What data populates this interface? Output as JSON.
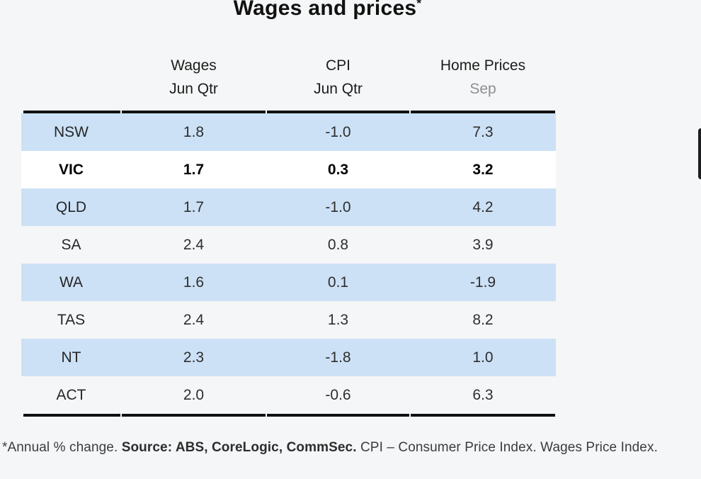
{
  "title": {
    "text": "Wages and prices",
    "superscript": "*"
  },
  "table": {
    "columns": [
      {
        "line1": "",
        "line2": ""
      },
      {
        "line1": "Wages",
        "line2": "Jun Qtr"
      },
      {
        "line1": "CPI",
        "line2": "Jun Qtr"
      },
      {
        "line1": "Home Prices",
        "line2": "Sep"
      }
    ],
    "rows": [
      {
        "label": "NSW",
        "wages": "1.8",
        "cpi": "-1.0",
        "home": "7.3",
        "shaded": true,
        "highlight": false
      },
      {
        "label": "VIC",
        "wages": "1.7",
        "cpi": "0.3",
        "home": "3.2",
        "shaded": false,
        "highlight": true
      },
      {
        "label": "QLD",
        "wages": "1.7",
        "cpi": "-1.0",
        "home": "4.2",
        "shaded": true,
        "highlight": false
      },
      {
        "label": "SA",
        "wages": "2.4",
        "cpi": "0.8",
        "home": "3.9",
        "shaded": false,
        "highlight": false
      },
      {
        "label": "WA",
        "wages": "1.6",
        "cpi": "0.1",
        "home": "-1.9",
        "shaded": true,
        "highlight": false
      },
      {
        "label": "TAS",
        "wages": "2.4",
        "cpi": "1.3",
        "home": "8.2",
        "shaded": false,
        "highlight": false
      },
      {
        "label": "NT",
        "wages": "2.3",
        "cpi": "-1.8",
        "home": "1.0",
        "shaded": true,
        "highlight": false
      },
      {
        "label": "ACT",
        "wages": "2.0",
        "cpi": "-0.6",
        "home": "6.3",
        "shaded": false,
        "highlight": false
      }
    ]
  },
  "footnote": {
    "part1": "*Annual % change. ",
    "part2": "Source: ABS, CoreLogic, CommSec.",
    "part3": " CPI – Consumer Price Index. Wages Price Index."
  },
  "colors": {
    "background": "#f5f6f7",
    "shaded_row": "#cce1f6",
    "highlight_row": "#ffffff",
    "rule": "#101010",
    "muted_header": "#8f8f8f"
  },
  "chart_data": {
    "type": "table",
    "title": "Wages and prices*",
    "columns": [
      "",
      "Wages Jun Qtr",
      "CPI Jun Qtr",
      "Home Prices Sep"
    ],
    "rows": [
      {
        "region": "NSW",
        "wages_jun_qtr": 1.8,
        "cpi_jun_qtr": -1.0,
        "home_prices_sep": 7.3
      },
      {
        "region": "VIC",
        "wages_jun_qtr": 1.7,
        "cpi_jun_qtr": 0.3,
        "home_prices_sep": 3.2
      },
      {
        "region": "QLD",
        "wages_jun_qtr": 1.7,
        "cpi_jun_qtr": -1.0,
        "home_prices_sep": 4.2
      },
      {
        "region": "SA",
        "wages_jun_qtr": 2.4,
        "cpi_jun_qtr": 0.8,
        "home_prices_sep": 3.9
      },
      {
        "region": "WA",
        "wages_jun_qtr": 1.6,
        "cpi_jun_qtr": 0.1,
        "home_prices_sep": -1.9
      },
      {
        "region": "TAS",
        "wages_jun_qtr": 2.4,
        "cpi_jun_qtr": 1.3,
        "home_prices_sep": 8.2
      },
      {
        "region": "NT",
        "wages_jun_qtr": 2.3,
        "cpi_jun_qtr": -1.8,
        "home_prices_sep": 1.0
      },
      {
        "region": "ACT",
        "wages_jun_qtr": 2.0,
        "cpi_jun_qtr": -0.6,
        "home_prices_sep": 6.3
      }
    ],
    "notes": "*Annual % change. Source: ABS, CoreLogic, CommSec. CPI – Consumer Price Index. Wages Price Index.",
    "highlighted_row": "VIC",
    "units": "percent"
  }
}
